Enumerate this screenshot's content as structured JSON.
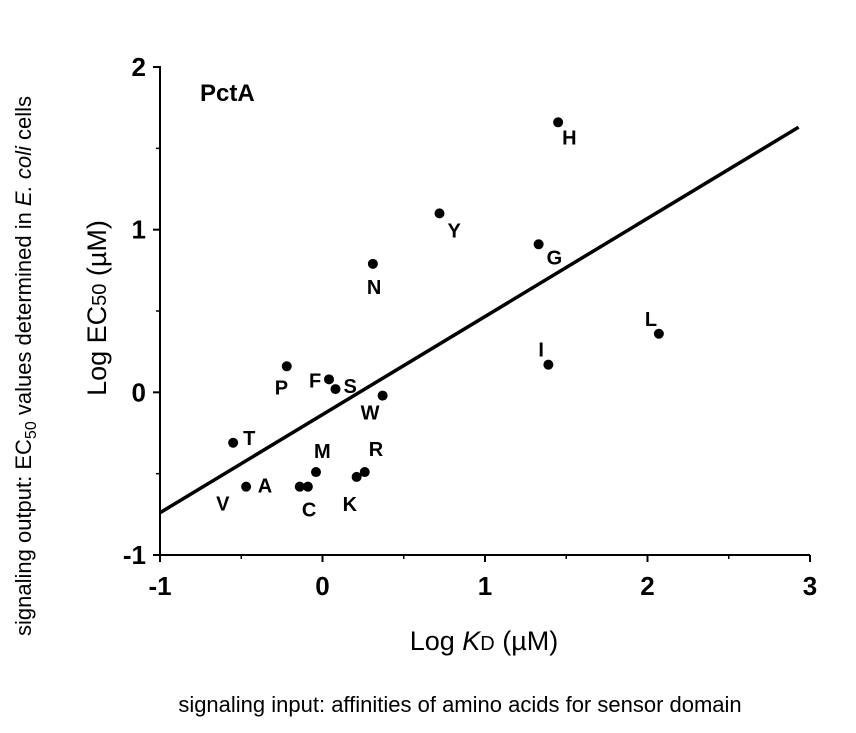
{
  "chart_data": {
    "type": "scatter",
    "title": "PctA",
    "xlabel": {
      "prefix": "Log ",
      "var": "K",
      "sub": "D",
      "suffix": " (µM)"
    },
    "ylabel": {
      "prefix": "Log EC",
      "sub": "50",
      "suffix": " (µM)"
    },
    "outer_xlabel": "signaling input: affinities of amino acids for sensor domain",
    "outer_ylabel": {
      "prefix": "signaling output: EC",
      "sub": "50",
      "mid": " values determined in ",
      "italic": "E. coli",
      "suffix": " cells"
    },
    "xlim": [
      -1,
      3
    ],
    "ylim": [
      -1,
      2
    ],
    "xticks": [
      -1,
      0,
      1,
      2,
      3
    ],
    "yticks": [
      -1,
      0,
      1,
      2
    ],
    "grid": false,
    "points": [
      {
        "label": "H",
        "x": 1.45,
        "y": 1.66
      },
      {
        "label": "Y",
        "x": 0.72,
        "y": 1.1
      },
      {
        "label": "G",
        "x": 1.33,
        "y": 0.91
      },
      {
        "label": "N",
        "x": 0.31,
        "y": 0.79
      },
      {
        "label": "L",
        "x": 2.07,
        "y": 0.36
      },
      {
        "label": "I",
        "x": 1.39,
        "y": 0.17
      },
      {
        "label": "P",
        "x": -0.22,
        "y": 0.16
      },
      {
        "label": "F",
        "x": 0.04,
        "y": 0.08
      },
      {
        "label": "S",
        "x": 0.08,
        "y": 0.02
      },
      {
        "label": "W",
        "x": 0.37,
        "y": -0.02
      },
      {
        "label": "T",
        "x": -0.55,
        "y": -0.31
      },
      {
        "label": "M",
        "x": -0.04,
        "y": -0.49
      },
      {
        "label": "R",
        "x": 0.26,
        "y": -0.49
      },
      {
        "label": "A",
        "x": -0.14,
        "y": -0.58
      },
      {
        "label": "C",
        "x": -0.09,
        "y": -0.58
      },
      {
        "label": "K",
        "x": 0.21,
        "y": -0.52
      },
      {
        "label": "V",
        "x": -0.47,
        "y": -0.58
      }
    ],
    "fit_line": {
      "x": [
        -1,
        2.93
      ],
      "y": [
        -0.74,
        1.63
      ]
    }
  }
}
